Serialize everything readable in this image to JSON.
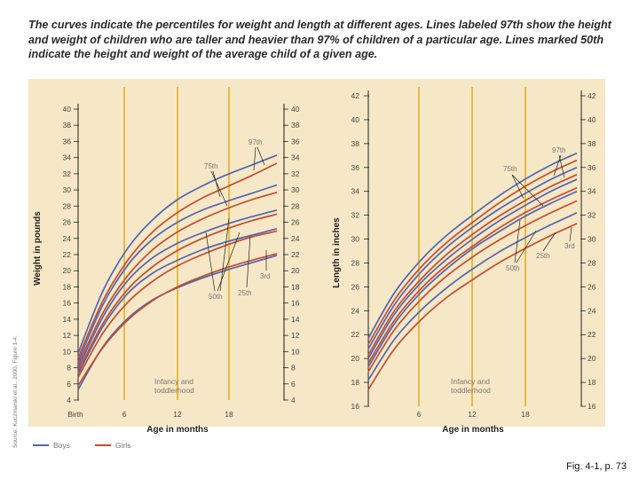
{
  "caption": {
    "lines": [
      "The curves indicate the percentiles for weight and length at different ages. Lines labeled 97th show the height",
      "and weight of children who are taller and heavier than 97% of children of a particular age. Lines marked 50th",
      "indicate the height and weight of the average child of a given age."
    ]
  },
  "colors": {
    "background": "#f6e7c6",
    "gridline": "#e7b43a",
    "boys": "#4f66b3",
    "girls": "#c34d2e",
    "axis": "#222222",
    "percentile_label": "#777777"
  },
  "chart_data": [
    {
      "type": "line",
      "title": "Weight",
      "ylabel": "Weight in pounds",
      "xlabel": "Age in months",
      "x_ticks": [
        "Birth",
        "6",
        "12",
        "18"
      ],
      "xlim": [
        0,
        24
      ],
      "ylim": [
        4,
        40
      ],
      "y_ticks": [
        4,
        6,
        8,
        10,
        12,
        14,
        16,
        18,
        20,
        22,
        24,
        26,
        28,
        30,
        32,
        34,
        36,
        38,
        40
      ],
      "grid": true,
      "annotation": "Infancy and\ntoddlerhood",
      "percentile_labels": [
        "97th",
        "75th",
        "50th",
        "25th",
        "3rd"
      ],
      "x": [
        0,
        3,
        6,
        9,
        12,
        15,
        18,
        21,
        24
      ],
      "series": [
        {
          "name": "Boys 97th",
          "group": "Boys",
          "values": [
            9.8,
            17.5,
            22.8,
            26.3,
            28.8,
            30.5,
            31.9,
            33.1,
            34.3
          ]
        },
        {
          "name": "Boys 75th",
          "group": "Boys",
          "values": [
            8.7,
            15.8,
            20.7,
            23.9,
            26.0,
            27.5,
            28.6,
            29.6,
            30.6
          ]
        },
        {
          "name": "Boys 50th",
          "group": "Boys",
          "values": [
            7.9,
            14.3,
            18.8,
            21.6,
            23.4,
            24.7,
            25.8,
            26.7,
            27.5
          ]
        },
        {
          "name": "Boys 25th",
          "group": "Boys",
          "values": [
            7.2,
            13.1,
            17.2,
            19.7,
            21.3,
            22.6,
            23.6,
            24.4,
            25.2
          ]
        },
        {
          "name": "Boys 3rd",
          "group": "Boys",
          "values": [
            5.3,
            10.6,
            14.1,
            16.4,
            17.9,
            19.1,
            20.1,
            21.0,
            21.9
          ]
        },
        {
          "name": "Girls 97th",
          "group": "Girls",
          "values": [
            9.2,
            16.3,
            21.3,
            24.8,
            27.2,
            29.0,
            30.4,
            31.8,
            33.3
          ]
        },
        {
          "name": "Girls 75th",
          "group": "Girls",
          "values": [
            8.3,
            14.8,
            19.4,
            22.6,
            24.8,
            26.4,
            27.7,
            28.8,
            29.7
          ]
        },
        {
          "name": "Girls 50th",
          "group": "Girls",
          "values": [
            7.5,
            13.5,
            17.7,
            20.5,
            22.5,
            24.0,
            25.2,
            26.2,
            27.0
          ]
        },
        {
          "name": "Girls 25th",
          "group": "Girls",
          "values": [
            6.8,
            12.3,
            16.1,
            18.7,
            20.6,
            22.0,
            23.2,
            24.2,
            24.9
          ]
        },
        {
          "name": "Girls 3rd",
          "group": "Girls",
          "values": [
            5.8,
            10.5,
            13.9,
            16.3,
            18.0,
            19.3,
            20.4,
            21.3,
            22.1
          ]
        }
      ]
    },
    {
      "type": "line",
      "title": "Length",
      "ylabel": "Length in inches",
      "xlabel": "Age in months",
      "x_ticks": [
        "",
        "6",
        "12",
        "18"
      ],
      "xlim": [
        0,
        24
      ],
      "ylim": [
        16,
        42
      ],
      "y_ticks": [
        16,
        18,
        20,
        22,
        24,
        26,
        28,
        30,
        32,
        34,
        36,
        38,
        40,
        42
      ],
      "grid": true,
      "annotation": "Infancy and\ntoddlerhood",
      "percentile_labels": [
        "97th",
        "75th",
        "50th",
        "25th",
        "3rd"
      ],
      "x": [
        0,
        3,
        6,
        9,
        12,
        15,
        18,
        21,
        24
      ],
      "series": [
        {
          "name": "Boys 97th",
          "group": "Boys",
          "values": [
            21.7,
            25.5,
            28.2,
            30.3,
            32.0,
            33.6,
            35.0,
            36.2,
            37.2
          ]
        },
        {
          "name": "Boys 75th",
          "group": "Boys",
          "values": [
            20.8,
            24.5,
            27.2,
            29.3,
            31.0,
            32.5,
            33.8,
            35.0,
            36.0
          ]
        },
        {
          "name": "Boys 50th",
          "group": "Boys",
          "values": [
            20.0,
            23.7,
            26.3,
            28.3,
            30.0,
            31.5,
            32.8,
            34.0,
            35.0
          ]
        },
        {
          "name": "Boys 25th",
          "group": "Boys",
          "values": [
            19.3,
            22.9,
            25.5,
            27.5,
            29.2,
            30.6,
            31.9,
            33.0,
            34.0
          ]
        },
        {
          "name": "Boys 3rd",
          "group": "Boys",
          "values": [
            18.2,
            21.6,
            24.0,
            25.9,
            27.5,
            28.9,
            30.1,
            31.2,
            32.2
          ]
        },
        {
          "name": "Girls 97th",
          "group": "Girls",
          "values": [
            21.2,
            24.9,
            27.6,
            29.7,
            31.4,
            33.0,
            34.4,
            35.6,
            36.6
          ]
        },
        {
          "name": "Girls 75th",
          "group": "Girls",
          "values": [
            20.3,
            24.0,
            26.6,
            28.7,
            30.4,
            31.9,
            33.2,
            34.4,
            35.4
          ]
        },
        {
          "name": "Girls 50th",
          "group": "Girls",
          "values": [
            19.6,
            23.2,
            25.8,
            27.8,
            29.4,
            30.9,
            32.2,
            33.3,
            34.3
          ]
        },
        {
          "name": "Girls 25th",
          "group": "Girls",
          "values": [
            18.9,
            22.4,
            24.9,
            26.9,
            28.5,
            29.9,
            31.1,
            32.2,
            33.2
          ]
        },
        {
          "name": "Girls 3rd",
          "group": "Girls",
          "values": [
            17.4,
            20.8,
            23.2,
            25.1,
            26.6,
            28.0,
            29.2,
            30.3,
            31.3
          ]
        }
      ]
    }
  ],
  "legend": [
    {
      "label": "Boys",
      "color": "#4f66b3"
    },
    {
      "label": "Girls",
      "color": "#c34d2e"
    }
  ],
  "source": "Source: Kuczmarski et al., 2000, Figure 1-4.",
  "figure_ref": "Fig. 4-1, p. 73"
}
